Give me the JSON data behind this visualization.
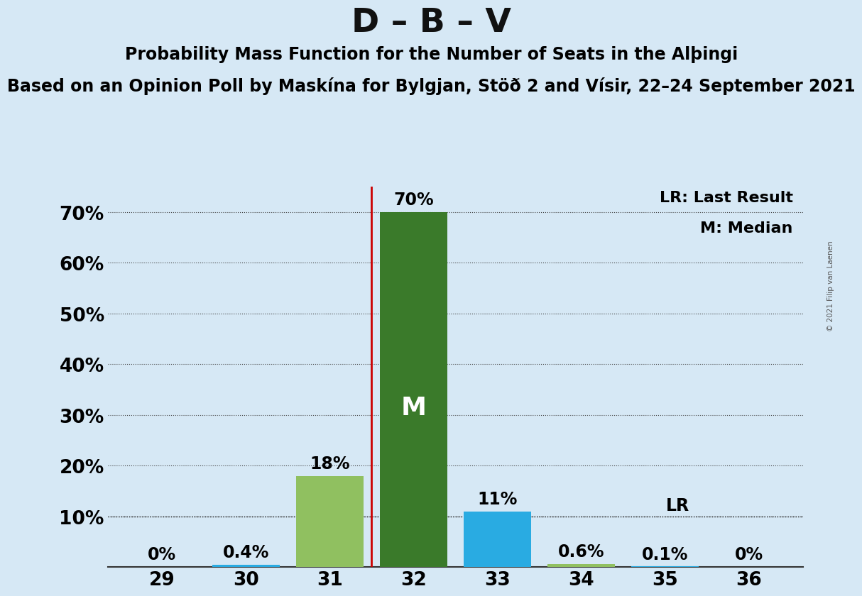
{
  "title": "D – B – V",
  "subtitle1": "Probability Mass Function for the Number of Seats in the Alþingi",
  "subtitle2": "Based on an Opinion Poll by Maskína for Bylgjan, Stöð 2 and Vísir, 22–24 September 2021",
  "copyright": "© 2021 Filip van Laenen",
  "seats": [
    29,
    30,
    31,
    32,
    33,
    34,
    35,
    36
  ],
  "probabilities": [
    0.0,
    0.4,
    18.0,
    70.0,
    11.0,
    0.6,
    0.1,
    0.0
  ],
  "bar_colors": [
    "#29ABE2",
    "#29ABE2",
    "#90C060",
    "#3A7A2A",
    "#29ABE2",
    "#90C060",
    "#29ABE2",
    "#29ABE2"
  ],
  "median_seat": 32,
  "last_result_seat": 35,
  "last_result_value": 10.0,
  "median_label": "M",
  "lr_label": "LR",
  "legend_lr": "LR: Last Result",
  "legend_m": "M: Median",
  "background_color": "#D6E8F5",
  "median_line_color": "#CC0000",
  "ylim": [
    0,
    75
  ],
  "yticks": [
    0,
    10,
    20,
    30,
    40,
    50,
    60,
    70
  ],
  "ytick_labels": [
    "",
    "10%",
    "20%",
    "30%",
    "40%",
    "50%",
    "60%",
    "70%"
  ],
  "title_fontsize": 34,
  "subtitle1_fontsize": 17,
  "subtitle2_fontsize": 17,
  "bar_label_fontsize": 17,
  "axis_tick_fontsize": 19,
  "legend_fontsize": 16,
  "m_label_fontsize": 26
}
